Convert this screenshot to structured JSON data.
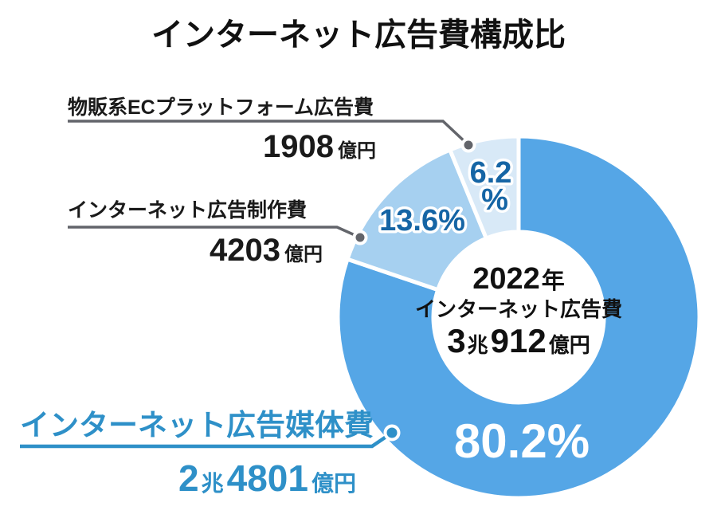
{
  "title": "インターネット広告費構成比",
  "chart_data": {
    "type": "pie",
    "subtype": "donut",
    "title": "インターネット広告費構成比",
    "start_angle_deg": 0,
    "direction": "clockwise",
    "center_label": {
      "year_num": "2022",
      "year_unit": "年",
      "line2": "インターネット広告費",
      "total_parts": [
        "3",
        "兆",
        "912",
        "億円"
      ],
      "total_display": "3兆912億円"
    },
    "segments": [
      {
        "id": "media",
        "name": "インターネット広告媒体費",
        "pct": 80.2,
        "pct_label": "80.2%",
        "value_display": "2兆4801億円",
        "value_parts": [
          "2",
          "兆",
          "4801",
          "億円"
        ],
        "color": "#55a6e6"
      },
      {
        "id": "production",
        "name": "インターネット広告制作費",
        "pct": 13.6,
        "pct_label": "13.6%",
        "value_display": "4203億円",
        "value_parts": [
          "4203",
          "億円"
        ],
        "color": "#a6d0f0"
      },
      {
        "id": "ec-platform",
        "name": "物販系ECプラットフォーム広告費",
        "pct": 6.2,
        "pct_label": "6.2%",
        "pct_num": "6.2",
        "pct_sign": "%",
        "value_parts": [
          "1908",
          "億円"
        ],
        "value_display": "1908億円",
        "color": "#d8e9f7"
      }
    ],
    "colors": {
      "segment_media": "#55a6e6",
      "segment_production": "#a6d0f0",
      "segment_ec": "#d8e9f7",
      "pct_text_dark": "#1565a5",
      "pct_text_light": "#ffffff",
      "callout_gray": "#63656b",
      "callout_blue": "#2e90c8",
      "text_black": "#1a1a1a"
    }
  }
}
